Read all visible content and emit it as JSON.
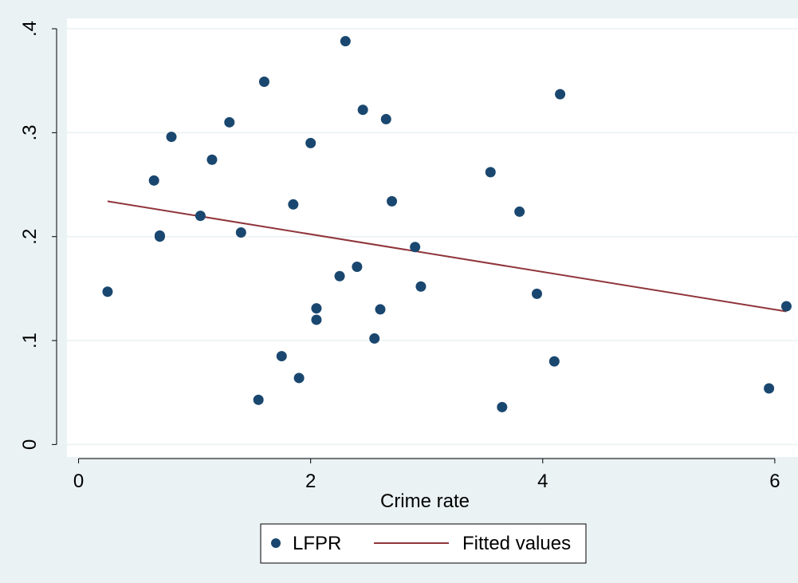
{
  "chart_data": {
    "type": "scatter",
    "title": "",
    "xlabel": "Crime rate",
    "ylabel": "",
    "xlim": [
      -0.1,
      6.2
    ],
    "ylim": [
      -0.012,
      0.41
    ],
    "x_ticks": [
      0,
      2,
      4,
      6
    ],
    "x_tick_labels": [
      "0",
      "2",
      "4",
      "6"
    ],
    "y_ticks": [
      0,
      0.1,
      0.2,
      0.3,
      0.4
    ],
    "y_tick_labels": [
      "0",
      ".1",
      ".2",
      ".3",
      ".4"
    ],
    "grid": "horizontal",
    "legend": {
      "position": "bottom",
      "entries": [
        "LFPR",
        "Fitted values"
      ]
    },
    "series": [
      {
        "name": "LFPR",
        "kind": "scatter",
        "color": "#1a476f",
        "points": [
          [
            0.25,
            0.147
          ],
          [
            0.65,
            0.254
          ],
          [
            0.7,
            0.201
          ],
          [
            0.7,
            0.2
          ],
          [
            0.8,
            0.296
          ],
          [
            1.05,
            0.22
          ],
          [
            1.15,
            0.274
          ],
          [
            1.3,
            0.31
          ],
          [
            1.4,
            0.204
          ],
          [
            1.55,
            0.043
          ],
          [
            1.6,
            0.349
          ],
          [
            1.75,
            0.085
          ],
          [
            1.85,
            0.231
          ],
          [
            1.9,
            0.064
          ],
          [
            2.0,
            0.29
          ],
          [
            2.05,
            0.131
          ],
          [
            2.05,
            0.12
          ],
          [
            2.25,
            0.162
          ],
          [
            2.3,
            0.388
          ],
          [
            2.4,
            0.171
          ],
          [
            2.45,
            0.322
          ],
          [
            2.55,
            0.102
          ],
          [
            2.6,
            0.13
          ],
          [
            2.65,
            0.313
          ],
          [
            2.7,
            0.234
          ],
          [
            2.9,
            0.19
          ],
          [
            2.95,
            0.152
          ],
          [
            3.55,
            0.262
          ],
          [
            3.65,
            0.036
          ],
          [
            3.8,
            0.224
          ],
          [
            3.95,
            0.145
          ],
          [
            4.1,
            0.08
          ],
          [
            4.15,
            0.337
          ],
          [
            5.95,
            0.054
          ],
          [
            6.1,
            0.133
          ]
        ]
      },
      {
        "name": "Fitted values",
        "kind": "line",
        "color": "#90353b",
        "points": [
          [
            0.25,
            0.234
          ],
          [
            6.1,
            0.128
          ]
        ]
      }
    ],
    "colors": {
      "outer_background": "#eaf2f3",
      "plot_background": "#ffffff",
      "grid": "#eaf2f3",
      "axis": "#000000"
    }
  }
}
